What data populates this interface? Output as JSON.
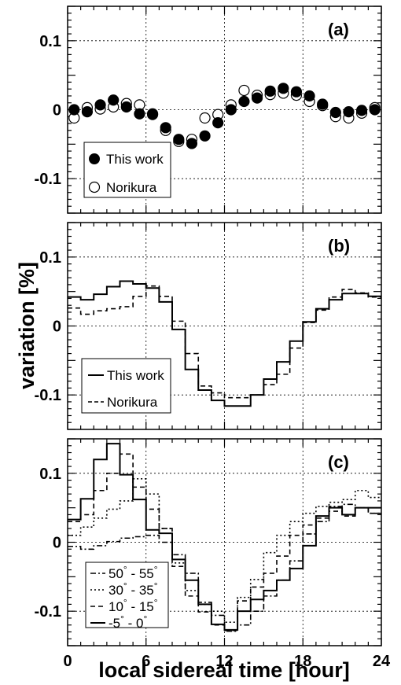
{
  "figure": {
    "ylabel": "variation [%]",
    "xlabel": "local sidereal time [hour]"
  },
  "chart_data": [
    {
      "type": "scatter",
      "panel": "(a)",
      "xlim": [
        0,
        24
      ],
      "ylim": [
        -0.15,
        0.15
      ],
      "x_ticks": [
        0,
        6,
        12,
        18,
        24
      ],
      "y_ticks": [
        -0.1,
        0,
        0.1
      ],
      "y_tick_labels": [
        "-0.1",
        "0",
        "0.1"
      ],
      "grid": "dotted",
      "legend_position": "lower-left",
      "series": [
        {
          "name": "This work",
          "marker": "filled-circle",
          "x": [
            0.5,
            1.5,
            2.5,
            3.5,
            4.5,
            5.5,
            6.5,
            7.5,
            8.5,
            9.5,
            10.5,
            11.5,
            12.5,
            13.5,
            14.5,
            15.5,
            16.5,
            17.5,
            18.5,
            19.5,
            20.5,
            21.5,
            22.5,
            23.5
          ],
          "y": [
            0.0,
            -0.003,
            0.007,
            0.014,
            0.004,
            -0.006,
            -0.007,
            -0.026,
            -0.043,
            -0.049,
            -0.038,
            -0.019,
            0.0,
            0.012,
            0.017,
            0.027,
            0.031,
            0.026,
            0.02,
            0.008,
            -0.004,
            -0.003,
            -0.001,
            0.0
          ]
        },
        {
          "name": "Norikura",
          "marker": "open-circle",
          "x": [
            0.5,
            1.5,
            2.5,
            3.5,
            4.5,
            5.5,
            6.5,
            7.5,
            8.5,
            9.5,
            10.5,
            11.5,
            12.5,
            13.5,
            14.5,
            15.5,
            16.5,
            17.5,
            18.5,
            19.5,
            20.5,
            21.5,
            22.5,
            23.5
          ],
          "y": [
            -0.012,
            0.003,
            0.001,
            0.004,
            0.009,
            0.007,
            -0.006,
            -0.03,
            -0.046,
            -0.043,
            -0.012,
            -0.007,
            0.007,
            0.028,
            0.021,
            0.022,
            0.024,
            0.021,
            0.012,
            0.006,
            -0.01,
            -0.012,
            -0.005,
            0.003
          ]
        }
      ]
    },
    {
      "type": "line",
      "panel": "(b)",
      "step": true,
      "xlim": [
        0,
        24
      ],
      "ylim": [
        -0.15,
        0.15
      ],
      "x_ticks": [
        0,
        6,
        12,
        18,
        24
      ],
      "y_ticks": [
        -0.1,
        0,
        0.1
      ],
      "y_tick_labels": [
        "-0.1",
        "0",
        "0.1"
      ],
      "grid": "dotted",
      "legend_position": "lower-left",
      "series": [
        {
          "name": "This work",
          "dash": "solid",
          "values": [
            0.042,
            0.038,
            0.046,
            0.057,
            0.065,
            0.061,
            0.055,
            0.035,
            -0.005,
            -0.063,
            -0.093,
            -0.108,
            -0.116,
            -0.116,
            -0.1,
            -0.077,
            -0.052,
            -0.022,
            0.006,
            0.025,
            0.038,
            0.047,
            0.047,
            0.043
          ]
        },
        {
          "name": "Norikura",
          "dash": "dashed",
          "values": [
            0.026,
            0.017,
            0.022,
            0.025,
            0.028,
            0.043,
            0.058,
            0.043,
            0.007,
            -0.04,
            -0.087,
            -0.097,
            -0.104,
            -0.104,
            -0.1,
            -0.085,
            -0.07,
            -0.032,
            0.005,
            0.023,
            0.042,
            0.053,
            0.048,
            0.042
          ]
        }
      ]
    },
    {
      "type": "line",
      "panel": "(c)",
      "step": true,
      "xlim": [
        0,
        24
      ],
      "ylim": [
        -0.15,
        0.15
      ],
      "x_ticks": [
        0,
        6,
        12,
        18,
        24
      ],
      "x_tick_labels": [
        "0",
        "6",
        "12",
        "18",
        "24"
      ],
      "y_ticks": [
        -0.1,
        0,
        0.1
      ],
      "y_tick_labels": [
        "-0.1",
        "0",
        "0.1"
      ],
      "grid": "dotted",
      "legend_position": "lower-left",
      "series": [
        {
          "name": "50 - 55",
          "legend_display": [
            "50",
            "°",
            " - ",
            "55",
            "°"
          ],
          "dash": "dash-dot",
          "values": [
            -0.006,
            -0.01,
            -0.005,
            0.001,
            0.006,
            0.008,
            0.01,
            0.0,
            -0.018,
            -0.045,
            -0.087,
            -0.106,
            -0.129,
            -0.12,
            -0.1,
            -0.078,
            -0.055,
            -0.027,
            0.012,
            0.03,
            0.052,
            0.055,
            0.05,
            0.042
          ]
        },
        {
          "name": "30 - 35",
          "legend_display": [
            "30",
            "°",
            " - ",
            "35",
            "°"
          ],
          "dash": "dotted",
          "values": [
            0.01,
            0.022,
            0.035,
            0.048,
            0.06,
            0.092,
            0.07,
            0.02,
            -0.03,
            -0.07,
            -0.09,
            -0.1,
            -0.116,
            -0.08,
            -0.054,
            -0.015,
            0.01,
            0.03,
            0.042,
            0.052,
            0.058,
            0.062,
            0.075,
            0.065
          ]
        },
        {
          "name": "10 - 15",
          "legend_display": [
            "10",
            "°",
            " - ",
            "15",
            "°"
          ],
          "dash": "dashed",
          "values": [
            0.03,
            0.04,
            0.075,
            0.1,
            0.128,
            0.08,
            0.048,
            0.02,
            -0.035,
            -0.078,
            -0.101,
            -0.12,
            -0.128,
            -0.085,
            -0.065,
            -0.045,
            -0.02,
            0.01,
            0.025,
            0.035,
            0.045,
            0.038,
            0.05,
            0.042
          ]
        },
        {
          "name": "-5 - 0",
          "legend_display": [
            "-5",
            "°",
            " - 0",
            "",
            "°"
          ],
          "dash": "solid",
          "values": [
            0.033,
            0.063,
            0.12,
            0.143,
            0.098,
            0.062,
            0.018,
            0.013,
            -0.025,
            -0.055,
            -0.09,
            -0.119,
            -0.127,
            -0.1,
            -0.083,
            -0.07,
            -0.055,
            -0.038,
            -0.005,
            0.038,
            0.05,
            0.04,
            0.05,
            0.05
          ]
        }
      ]
    }
  ]
}
